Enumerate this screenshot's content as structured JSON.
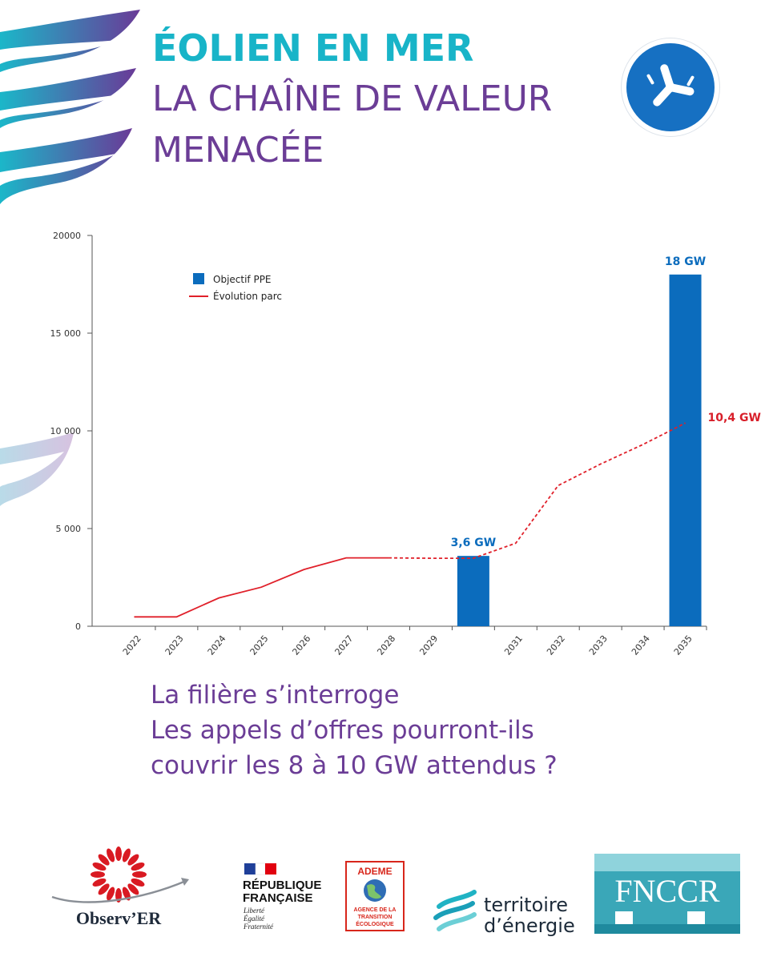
{
  "colors": {
    "teal": "#18b4c8",
    "purple": "#6b3d96",
    "bar_blue": "#0b6cbd",
    "line_red": "#e0202a",
    "label_red": "#d81f2a",
    "axis_gray": "#555555",
    "badge_blue": "#1670c2",
    "fnccr_teal": "#3aa7b8"
  },
  "header": {
    "title_line1": "ÉOLIEN EN MER",
    "title_line2": "LA CHAÎNE DE VALEUR",
    "title_line3": "MENACÉE",
    "badge_icon": "wind-turbine-icon"
  },
  "chart_data": {
    "type": "bar",
    "title": "",
    "xlabel": "",
    "ylabel": "",
    "ylim": [
      0,
      20000
    ],
    "yticks": [
      0,
      5000,
      10000,
      15000,
      20000
    ],
    "ytick_labels": [
      "0",
      "5 000",
      "10 000",
      "15 000",
      "20000"
    ],
    "categories": [
      "2022",
      "2023",
      "2024",
      "2025",
      "2026",
      "2027",
      "2028",
      "2029",
      "",
      "2031",
      "2032",
      "2033",
      "2034",
      "2035"
    ],
    "grid": false,
    "legend_position": "top-left",
    "series": [
      {
        "name": "Objectif PPE",
        "kind": "bar",
        "values": [
          null,
          null,
          null,
          null,
          null,
          null,
          null,
          null,
          3600,
          null,
          null,
          null,
          null,
          18000
        ]
      },
      {
        "name": "Évolution parc",
        "kind": "line",
        "values": [
          480,
          480,
          1450,
          2000,
          2900,
          3500,
          3500,
          3480,
          3480,
          4250,
          7200,
          8300,
          9300,
          10400
        ],
        "dashed_from_index": 6
      }
    ],
    "annotations": [
      {
        "text": "3,6 GW",
        "x_index": 8,
        "y": 3600,
        "series": "Objectif PPE"
      },
      {
        "text": "18 GW",
        "x_index": 13,
        "y": 18000,
        "series": "Objectif PPE"
      },
      {
        "text": "10,4 GW",
        "x_index": 13,
        "y": 10400,
        "series": "Évolution parc"
      }
    ]
  },
  "question": {
    "line1": "La filière s’interroge",
    "line2": "Les appels d’offres pourront-ils",
    "line3": "couvrir les 8 à 10 GW attendus ?"
  },
  "logos": {
    "observer": {
      "name": "Observ’ER",
      "icon": "observer-sun-icon"
    },
    "republique": {
      "line1": "RÉPUBLIQUE",
      "line2": "FRANÇAISE",
      "motto1": "Liberté",
      "motto2": "Égalité",
      "motto3": "Fraternité",
      "icon": "marianne-icon"
    },
    "ademe": {
      "name": "ADEME",
      "sub1": "AGENCE DE LA",
      "sub2": "TRANSITION",
      "sub3": "ÉCOLOGIQUE",
      "icon": "globe-icon"
    },
    "territoire": {
      "line1": "territoire",
      "line2": "d’énergie",
      "icon": "te-wave-icon"
    },
    "fnccr": {
      "name": "FNCCR"
    }
  }
}
